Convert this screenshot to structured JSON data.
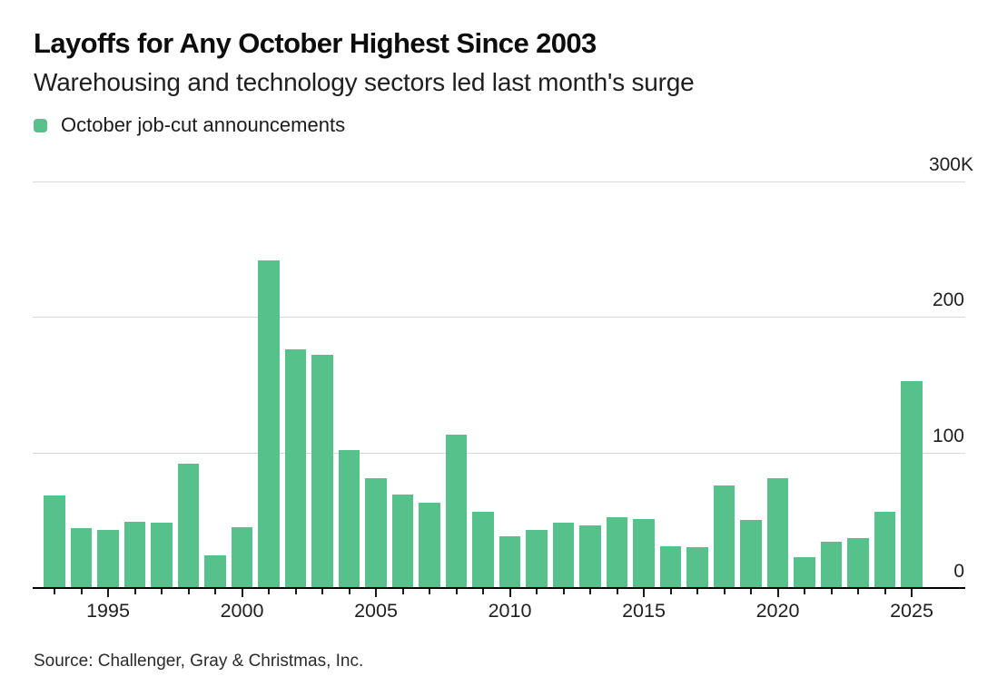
{
  "header": {
    "title": "Layoffs for Any October Highest Since 2003",
    "subtitle": "Warehousing and technology sectors led last month's surge"
  },
  "legend": {
    "label": "October job-cut announcements"
  },
  "footer": {
    "source": "Source: Challenger, Gray & Christmas, Inc."
  },
  "colors": {
    "bar": "#57c18c",
    "gridline": "#d8d8d8",
    "axis": "#000000",
    "text": "#1f1f1f"
  },
  "chart_data": {
    "type": "bar",
    "title": "Layoffs for Any October Highest Since 2003",
    "subtitle": "Warehousing and technology sectors led last month's surge",
    "series_name": "October job-cut announcements",
    "unit": "thousands of announced job cuts",
    "x": [
      1993,
      1994,
      1995,
      1996,
      1997,
      1998,
      1999,
      2000,
      2001,
      2002,
      2003,
      2004,
      2005,
      2006,
      2007,
      2008,
      2009,
      2010,
      2011,
      2012,
      2013,
      2014,
      2015,
      2016,
      2017,
      2018,
      2019,
      2020,
      2021,
      2022,
      2023,
      2024,
      2025
    ],
    "values_thousands": [
      68,
      44,
      43,
      49,
      48,
      92,
      24,
      45,
      242,
      176,
      172,
      102,
      81,
      69,
      63,
      113,
      56,
      38,
      43,
      48,
      46,
      52,
      51,
      31,
      30,
      76,
      50,
      81,
      23,
      34,
      37,
      56,
      153
    ],
    "ylim_thousands": [
      0,
      300
    ],
    "yticks": [
      {
        "value": 0,
        "label": "0"
      },
      {
        "value": 100,
        "label": "100"
      },
      {
        "value": 200,
        "label": "200"
      },
      {
        "value": 300,
        "label": "300K"
      }
    ],
    "xtick_labeled_years": [
      1995,
      2000,
      2005,
      2010,
      2015,
      2020,
      2025
    ],
    "grid": "horizontal",
    "legend_position": "top-left",
    "source": "Source: Challenger, Gray & Christmas, Inc."
  }
}
